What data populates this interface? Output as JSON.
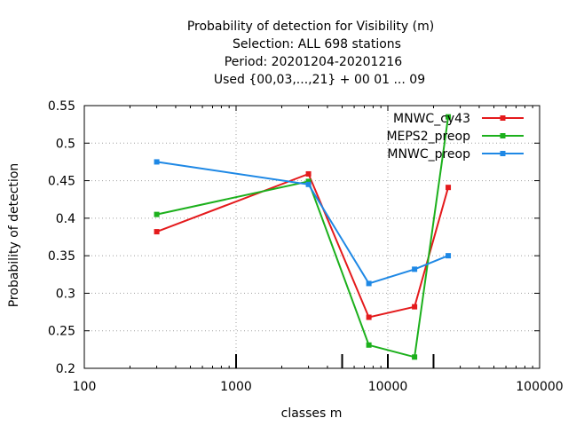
{
  "chart_data": {
    "type": "line",
    "title_lines": [
      "Probability of detection  for Visibility (m)",
      "Selection: ALL    698 stations",
      "Period: 20201204-20201216",
      "Used {00,03,...,21} + 00 01 ... 09"
    ],
    "xlabel": "classes m",
    "ylabel": "Probability of detection",
    "xscale": "log",
    "xlim": [
      100,
      100000
    ],
    "ylim": [
      0.2,
      0.55
    ],
    "x_ticks": [
      100,
      1000,
      10000,
      100000
    ],
    "x_tick_labels": [
      "100",
      "1000",
      "10000",
      "100000"
    ],
    "y_ticks": [
      0.2,
      0.25,
      0.3,
      0.35,
      0.4,
      0.45,
      0.5,
      0.55
    ],
    "y_tick_labels": [
      "0.2",
      "0.25",
      "0.3",
      "0.35",
      "0.4",
      "0.45",
      "0.5",
      "0.55"
    ],
    "class_markers": [
      1000,
      5000,
      10000,
      20000
    ],
    "grid": true,
    "legend_position": "top-right",
    "series": [
      {
        "name": "MNWC_cy43",
        "color": "#e41a1c",
        "x": [
          300,
          3000,
          7500,
          15000,
          25000
        ],
        "y": [
          0.382,
          0.459,
          0.268,
          0.282,
          0.441
        ]
      },
      {
        "name": "MEPS2_preop",
        "color": "#1cb01c",
        "x": [
          300,
          3000,
          7500,
          15000,
          25000
        ],
        "y": [
          0.405,
          0.449,
          0.231,
          0.215,
          0.535
        ]
      },
      {
        "name": "MNWC_preop",
        "color": "#1e88e5",
        "x": [
          300,
          3000,
          7500,
          15000,
          25000
        ],
        "y": [
          0.475,
          0.445,
          0.313,
          0.332,
          0.35
        ]
      }
    ]
  }
}
